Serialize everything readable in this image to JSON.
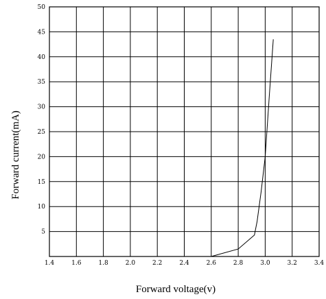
{
  "chart_data": {
    "type": "line",
    "xlabel": "Forward voltage(v)",
    "ylabel": "Forward current(mA)",
    "xlim": [
      1.4,
      3.4
    ],
    "ylim": [
      0,
      50
    ],
    "x_ticks": [
      "1.4",
      "1.6",
      "1.8",
      "2.0",
      "2.2",
      "2.4",
      "2.6",
      "2.8",
      "3.0",
      "3.2",
      "3.4"
    ],
    "y_ticks": [
      "5",
      "10",
      "15",
      "20",
      "25",
      "30",
      "35",
      "40",
      "45",
      "50"
    ],
    "grid": true,
    "series": [
      {
        "x": [
          2.6,
          2.8,
          2.92,
          2.94,
          2.97,
          3.0,
          3.03,
          3.06
        ],
        "y": [
          0,
          1.5,
          4.3,
          7,
          13,
          20,
          32,
          43.5
        ]
      }
    ]
  }
}
